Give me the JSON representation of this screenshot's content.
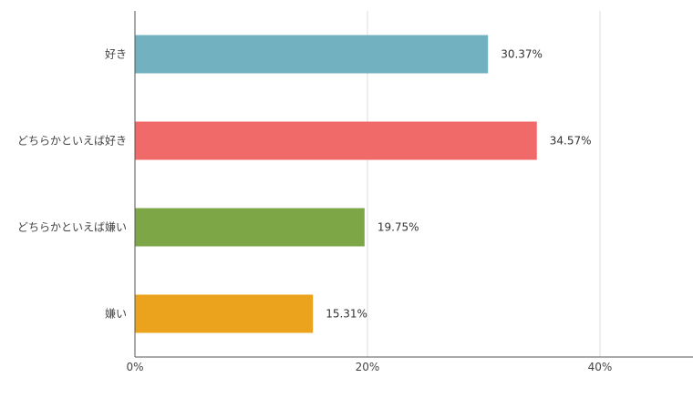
{
  "chart_data": {
    "type": "bar",
    "orientation": "horizontal",
    "categories": [
      "好き",
      "どちらかといえば好き",
      "どちらかといえば嫌い",
      "嫌い"
    ],
    "values": [
      30.37,
      34.57,
      19.75,
      15.31
    ],
    "data_labels": [
      "30.37%",
      "34.57%",
      "19.75%",
      "15.31%"
    ],
    "colors": [
      "#72b1c0",
      "#f06a69",
      "#7da647",
      "#eba31e"
    ],
    "xlim": [
      0,
      48
    ],
    "x_ticks": [
      0,
      20,
      40
    ],
    "x_tick_labels": [
      "0%",
      "20%",
      "40%"
    ],
    "grid": true,
    "legend": "none"
  }
}
